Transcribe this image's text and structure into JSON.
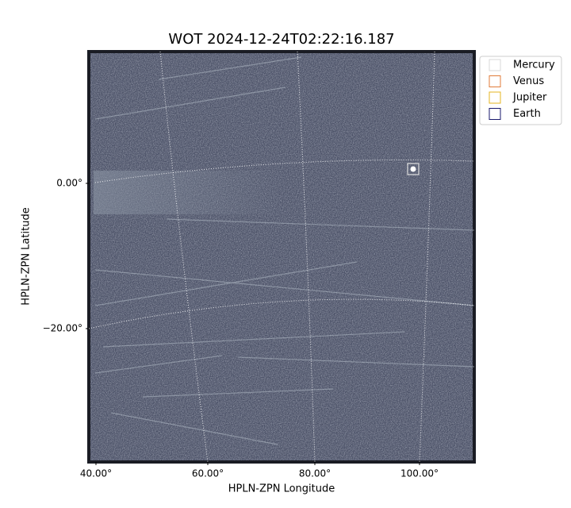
{
  "chart_data": {
    "type": "image",
    "title": "WOT 2024-12-24T02:22:16.187",
    "x_label": "HPLN-ZPN Longitude",
    "y_label": "HPLN-ZPN Latitude",
    "xticks": [
      {
        "value": 40,
        "label": "40.00°"
      },
      {
        "value": 60,
        "label": "60.00°"
      },
      {
        "value": 80,
        "label": "80.00°"
      },
      {
        "value": 100,
        "label": "100.00°"
      }
    ],
    "yticks": [
      {
        "value": 0,
        "label": "0.00°"
      },
      {
        "value": -20,
        "label": "−20.00°"
      }
    ],
    "grid": true,
    "legend_position": "outside right",
    "series": [
      {
        "name": "Mercury",
        "color": "#d9d9d9"
      },
      {
        "name": "Venus",
        "color": "#e07b39"
      },
      {
        "name": "Jupiter",
        "color": "#e6b422"
      },
      {
        "name": "Earth",
        "color": "#1a1a6e"
      }
    ]
  }
}
